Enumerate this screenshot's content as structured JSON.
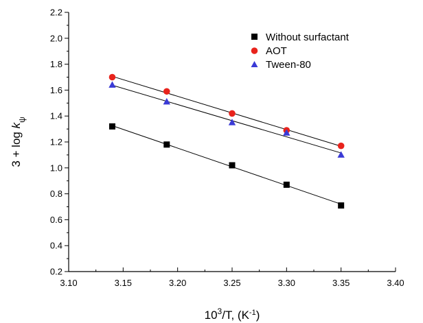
{
  "chart_data": {
    "type": "scatter",
    "x": [
      3.14,
      3.19,
      3.25,
      3.3,
      3.35
    ],
    "xlim": [
      3.1,
      3.4
    ],
    "ylim": [
      0.2,
      2.2
    ],
    "x_ticks": [
      "3.10",
      "3.15",
      "3.20",
      "3.25",
      "3.30",
      "3.35",
      "3.40"
    ],
    "y_ticks": [
      "0.2",
      "0.4",
      "0.6",
      "0.8",
      "1.0",
      "1.2",
      "1.4",
      "1.6",
      "1.8",
      "2.0",
      "2.2"
    ],
    "xlabel": {
      "base": "10",
      "sup": "3",
      "rest": "/T, (K",
      "unit_sup": "-1",
      "close": ")"
    },
    "ylabel": {
      "prefix": "3 + log ",
      "k": "k",
      "sub": "ψ"
    },
    "legend_position": "top-right",
    "grid": false,
    "fit_lines": true,
    "series": [
      {
        "name": "Without surfactant",
        "marker": "square",
        "color": "#000000",
        "values": [
          1.32,
          1.18,
          1.02,
          0.87,
          0.71
        ]
      },
      {
        "name": "AOT",
        "marker": "circle",
        "color": "#e8231c",
        "values": [
          1.7,
          1.59,
          1.42,
          1.29,
          1.17
        ]
      },
      {
        "name": "Tween-80",
        "marker": "triangle",
        "color": "#3a3ad6",
        "values": [
          1.64,
          1.51,
          1.35,
          1.27,
          1.1
        ]
      }
    ]
  }
}
